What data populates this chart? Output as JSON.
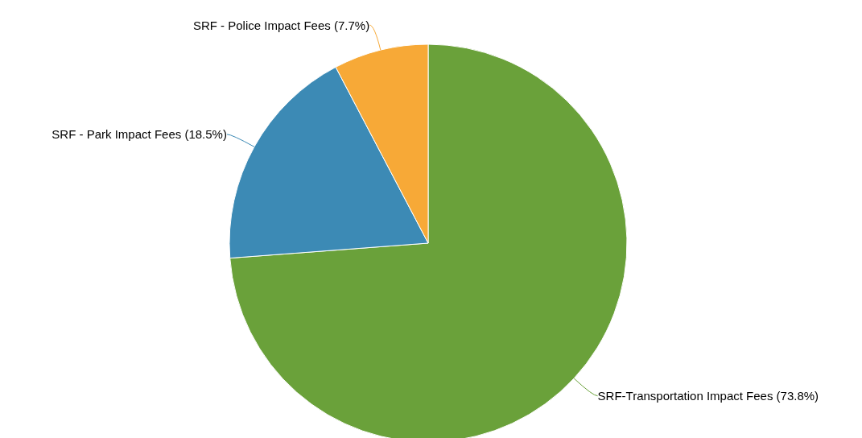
{
  "chart_data": {
    "type": "pie",
    "categories": [
      "SRF-Transportation Impact Fees",
      "SRF - Park Impact Fees",
      "SRF - Police Impact Fees"
    ],
    "values": [
      73.8,
      18.5,
      7.7
    ],
    "colors": [
      "#6aa13a",
      "#3c8ab5",
      "#f7a937"
    ],
    "value_labels": [
      "(73.8%)",
      "(18.5%)",
      "(7.7%)"
    ],
    "legend": false
  }
}
